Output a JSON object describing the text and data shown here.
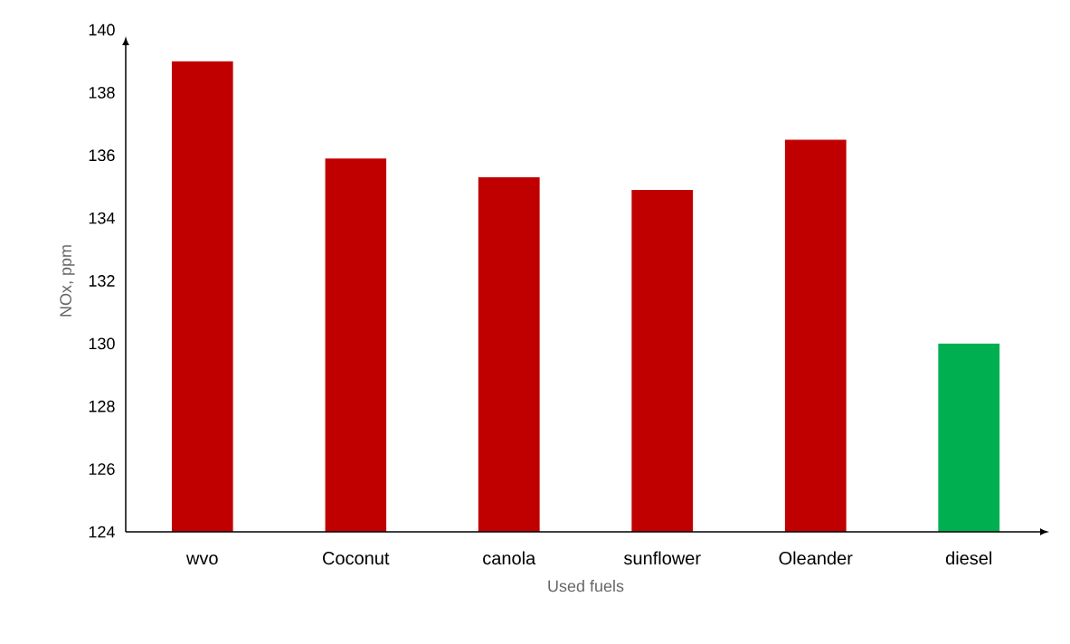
{
  "chart_data": {
    "type": "bar",
    "xlabel": "Used fuels",
    "ylabel": "NOx, ppm",
    "categories": [
      "wvo",
      "Coconut",
      "canola",
      "sunflower",
      "Oleander",
      "diesel"
    ],
    "values": [
      139.0,
      135.9,
      135.3,
      134.9,
      136.5,
      130.0
    ],
    "colors": [
      "#c00000",
      "#c00000",
      "#c00000",
      "#c00000",
      "#c00000",
      "#00b050"
    ],
    "ylim": [
      124,
      140
    ],
    "yticks": [
      124,
      126,
      128,
      130,
      132,
      134,
      136,
      138,
      140
    ],
    "grid": false
  }
}
